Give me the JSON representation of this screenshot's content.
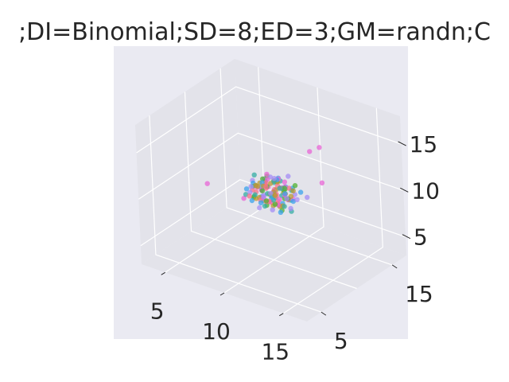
{
  "chart_data": {
    "type": "scatter",
    "projection": "3d",
    "title": ";DI=Binomial;SD=8;ED=3;GM=randn;C",
    "xlabel": "",
    "ylabel": "",
    "zlabel": "",
    "x_ticks": [
      "5",
      "10",
      "15"
    ],
    "y_ticks": [
      "5",
      "15"
    ],
    "z_ticks": [
      "5",
      "10",
      "15"
    ],
    "xlim": [
      3,
      17
    ],
    "ylim": [
      3,
      17
    ],
    "zlim": [
      3,
      18
    ],
    "grid": true,
    "legend": "none",
    "style": {
      "axes_bg": "#eaeaf2",
      "pane_color": "#e3e3ea",
      "grid_color": "#ffffff",
      "marker_alpha": 0.75
    },
    "series": [
      {
        "color": "#f77189",
        "points": [
          [
            9.8,
            9.6,
            9.4
          ],
          [
            10.4,
            10.1,
            10.2
          ],
          [
            9.1,
            10.8,
            9.9
          ],
          [
            10.9,
            9.3,
            10.6
          ],
          [
            9.6,
            9.9,
            11.0
          ],
          [
            10.2,
            10.6,
            9.1
          ],
          [
            8.8,
            9.4,
            10.3
          ],
          [
            11.2,
            10.4,
            9.8
          ],
          [
            9.4,
            10.3,
            10.9
          ],
          [
            10.7,
            9.7,
            9.5
          ],
          [
            9.9,
            11.1,
            10.4
          ],
          [
            8.6,
            10.2,
            9.6
          ],
          [
            10.5,
            8.9,
            10.1
          ],
          [
            9.2,
            9.8,
            9.2
          ],
          [
            11.0,
            10.9,
            10.7
          ],
          [
            10.1,
            9.2,
            11.3
          ],
          [
            9.7,
            10.5,
            8.8
          ],
          [
            8.9,
            8.8,
            10.0
          ],
          [
            10.8,
            10.0,
            11.1
          ],
          [
            9.5,
            11.3,
            9.7
          ]
        ]
      },
      {
        "color": "#bb9832",
        "points": [
          [
            10.3,
            9.9,
            10.5
          ],
          [
            9.6,
            10.4,
            9.7
          ],
          [
            10.8,
            10.7,
            10.1
          ],
          [
            9.2,
            9.5,
            10.8
          ],
          [
            11.1,
            9.8,
            9.4
          ],
          [
            10.0,
            11.0,
            10.9
          ],
          [
            9.4,
            8.9,
            9.9
          ],
          [
            10.6,
            10.2,
            8.9
          ],
          [
            8.7,
            10.6,
            10.4
          ],
          [
            11.4,
            10.5,
            10.2
          ],
          [
            9.8,
            9.3,
            11.2
          ],
          [
            10.2,
            11.4,
            9.6
          ],
          [
            9.0,
            10.0,
            9.3
          ],
          [
            10.9,
            9.1,
            10.8
          ],
          [
            9.5,
            10.8,
            10.6
          ],
          [
            10.4,
            9.6,
            9.2
          ],
          [
            11.3,
            11.0,
            10.5
          ],
          [
            8.9,
            9.7,
            10.7
          ],
          [
            10.1,
            10.3,
            11.4
          ],
          [
            9.7,
            11.2,
            9.8
          ]
        ]
      },
      {
        "color": "#50b131",
        "points": [
          [
            10.0,
            10.1,
            9.8
          ],
          [
            9.3,
            10.6,
            10.3
          ],
          [
            10.7,
            9.4,
            9.6
          ],
          [
            9.8,
            11.2,
            10.7
          ],
          [
            11.0,
            10.3,
            11.0
          ],
          [
            8.8,
            9.6,
            9.5
          ],
          [
            10.4,
            8.7,
            10.2
          ],
          [
            9.6,
            10.0,
            8.7
          ],
          [
            11.5,
            9.9,
            10.3
          ],
          [
            9.1,
            11.0,
            11.1
          ],
          [
            10.6,
            10.9,
            9.4
          ],
          [
            9.9,
            9.0,
            10.9
          ],
          [
            8.5,
            10.4,
            10.1
          ],
          [
            10.3,
            11.5,
            10.0
          ],
          [
            11.2,
            9.5,
            9.1
          ],
          [
            9.4,
            9.9,
            11.5
          ],
          [
            10.8,
            10.5,
            10.6
          ],
          [
            9.0,
            9.2,
            9.7
          ],
          [
            10.2,
            10.7,
            8.6
          ],
          [
            11.6,
            10.8,
            11.3
          ]
        ]
      },
      {
        "color": "#36ada4",
        "points": [
          [
            9.7,
            10.0,
            10.0
          ],
          [
            10.5,
            9.5,
            9.9
          ],
          [
            9.0,
            10.9,
            10.6
          ],
          [
            11.3,
            10.6,
            9.7
          ],
          [
            8.6,
            9.8,
            10.4
          ],
          [
            10.1,
            11.3,
            9.3
          ],
          [
            9.5,
            8.6,
            10.5
          ],
          [
            10.9,
            9.8,
            11.2
          ],
          [
            9.2,
            10.2,
            8.9
          ],
          [
            11.1,
            11.1,
            10.4
          ],
          [
            8.4,
            9.1,
            9.8
          ],
          [
            10.7,
            10.4,
            10.8
          ],
          [
            9.8,
            9.4,
            9.0
          ],
          [
            10.3,
            10.0,
            11.6
          ],
          [
            12.2,
            9.2,
            9.6
          ],
          [
            9.3,
            11.6,
            10.2
          ],
          [
            8.2,
            10.7,
            11.0
          ],
          [
            11.8,
            8.9,
            10.1
          ],
          [
            10.0,
            10.6,
            9.4
          ],
          [
            9.6,
            12.0,
            10.3
          ]
        ]
      },
      {
        "color": "#3ba3ec",
        "points": [
          [
            10.2,
            10.2,
            10.1
          ],
          [
            9.4,
            9.7,
            10.7
          ],
          [
            11.0,
            10.8,
            9.5
          ],
          [
            8.9,
            10.5,
            9.8
          ],
          [
            10.6,
            9.1,
            10.4
          ],
          [
            9.8,
            11.4,
            11.0
          ],
          [
            11.4,
            9.7,
            10.9
          ],
          [
            9.1,
            8.8,
            9.6
          ],
          [
            10.4,
            10.9,
            8.8
          ],
          [
            8.5,
            10.0,
            10.6
          ],
          [
            11.7,
            10.3,
            9.9
          ],
          [
            9.6,
            9.5,
            11.4
          ],
          [
            10.8,
            11.7,
            10.2
          ],
          [
            9.0,
            10.3,
            9.2
          ],
          [
            10.1,
            8.4,
            10.0
          ],
          [
            12.0,
            10.9,
            10.7
          ],
          [
            8.3,
            9.4,
            10.2
          ],
          [
            10.5,
            10.1,
            11.8
          ],
          [
            9.9,
            12.2,
            9.7
          ],
          [
            11.2,
            9.3,
            9.0
          ]
        ]
      },
      {
        "color": "#a48cf4",
        "points": [
          [
            10.1,
            9.8,
            10.3
          ],
          [
            9.2,
            10.3,
            9.5
          ],
          [
            10.9,
            10.5,
            10.9
          ],
          [
            8.7,
            9.2,
            10.1
          ],
          [
            11.3,
            11.2,
            10.0
          ],
          [
            9.5,
            10.8,
            11.3
          ],
          [
            10.7,
            9.0,
            9.2
          ],
          [
            8.4,
            10.1,
            10.8
          ],
          [
            11.6,
            9.6,
            10.5
          ],
          [
            9.9,
            11.8,
            9.8
          ],
          [
            10.3,
            8.5,
            10.7
          ],
          [
            8.1,
            10.9,
            9.7
          ],
          [
            12.1,
            10.2,
            10.3
          ],
          [
            9.4,
            9.3,
            8.7
          ],
          [
            10.6,
            11.5,
            11.5
          ],
          [
            9.0,
            8.9,
            11.0
          ],
          [
            11.9,
            11.9,
            9.6
          ],
          [
            8.6,
            11.4,
            10.4
          ],
          [
            10.4,
            9.9,
            12.0
          ],
          [
            12.4,
            8.8,
            10.2
          ]
        ]
      },
      {
        "color": "#e866d6",
        "points": [
          [
            10.0,
            10.4,
            10.2
          ],
          [
            9.6,
            9.6,
            9.7
          ],
          [
            10.6,
            11.0,
            10.6
          ],
          [
            9.3,
            10.7,
            11.0
          ],
          [
            11.1,
            9.4,
            10.3
          ],
          [
            9.8,
            10.1,
            9.1
          ],
          [
            10.4,
            11.3,
            10.9
          ],
          [
            8.9,
            9.9,
            10.4
          ],
          [
            11.5,
            10.6,
            9.9
          ],
          [
            9.7,
            9.2,
            10.8
          ],
          [
            10.2,
            10.8,
            11.4
          ],
          [
            9.1,
            11.1,
            9.9
          ],
          [
            10.8,
            9.7,
            9.4
          ],
          [
            9.4,
            10.5,
            11.7
          ],
          [
            11.2,
            10.0,
            10.5
          ],
          [
            13.2,
            11.8,
            15.6
          ],
          [
            12.6,
            11.4,
            15.1
          ],
          [
            5.2,
            9.0,
            9.6
          ],
          [
            7.9,
            9.6,
            8.9
          ],
          [
            12.8,
            12.6,
            11.2
          ]
        ]
      }
    ]
  }
}
